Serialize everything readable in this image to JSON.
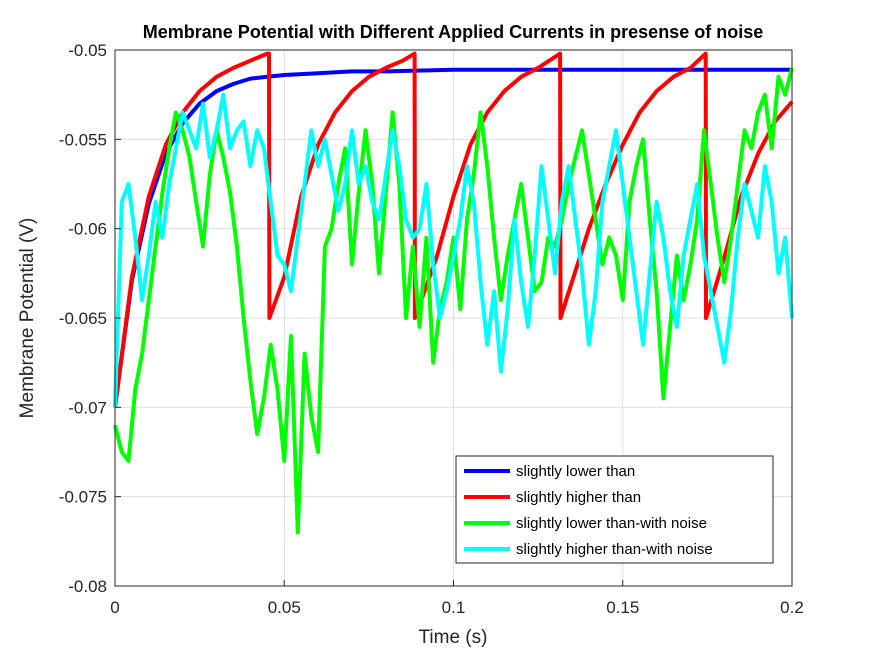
{
  "chart_data": {
    "type": "line",
    "title": "Membrane Potential with Different Applied Currents in presense of noise",
    "xlabel": "Time (s)",
    "ylabel": "Membrane Potential (V)",
    "xlim": [
      0,
      0.2
    ],
    "ylim": [
      -0.08,
      -0.05
    ],
    "xticks": [
      0,
      0.05,
      0.1,
      0.15,
      0.2
    ],
    "xtick_labels": [
      "0",
      "0.05",
      "0.1",
      "0.15",
      "0.2"
    ],
    "yticks": [
      -0.08,
      -0.075,
      -0.07,
      -0.065,
      -0.06,
      -0.055,
      -0.05
    ],
    "ytick_labels": [
      "-0.08",
      "-0.075",
      "-0.07",
      "-0.065",
      "-0.06",
      "-0.055",
      "-0.05"
    ],
    "grid": true,
    "legend_position": "bottom-right",
    "series": [
      {
        "name": "slightly lower than",
        "color": "#0000ff",
        "x": [
          0,
          0.005,
          0.01,
          0.015,
          0.02,
          0.025,
          0.03,
          0.035,
          0.04,
          0.045,
          0.05,
          0.06,
          0.07,
          0.08,
          0.1,
          0.12,
          0.14,
          0.16,
          0.18,
          0.2
        ],
        "y": [
          -0.07,
          -0.0629,
          -0.0586,
          -0.0558,
          -0.0541,
          -0.053,
          -0.0523,
          -0.0519,
          -0.0516,
          -0.0515,
          -0.0514,
          -0.0513,
          -0.0512,
          -0.0512,
          -0.0511,
          -0.0511,
          -0.0511,
          -0.0511,
          -0.0511,
          -0.0511
        ]
      },
      {
        "name": "slightly higher than",
        "color": "#ff0000",
        "x": [
          0,
          0.005,
          0.01,
          0.015,
          0.02,
          0.025,
          0.03,
          0.035,
          0.04,
          0.045,
          0.0455,
          0.0456,
          0.05,
          0.055,
          0.06,
          0.065,
          0.07,
          0.075,
          0.08,
          0.085,
          0.0885,
          0.0886,
          0.095,
          0.1,
          0.105,
          0.11,
          0.115,
          0.12,
          0.125,
          0.1315,
          0.1316,
          0.14,
          0.145,
          0.15,
          0.155,
          0.16,
          0.165,
          0.17,
          0.1745,
          0.1746,
          0.18,
          0.185,
          0.19,
          0.195,
          0.2
        ],
        "y": [
          -0.07,
          -0.0627,
          -0.0582,
          -0.0553,
          -0.0535,
          -0.0523,
          -0.0515,
          -0.051,
          -0.0506,
          -0.0502,
          -0.0502,
          -0.065,
          -0.0627,
          -0.0582,
          -0.0553,
          -0.0535,
          -0.0523,
          -0.0515,
          -0.051,
          -0.0506,
          -0.0502,
          -0.065,
          -0.0616,
          -0.0582,
          -0.0553,
          -0.0535,
          -0.0523,
          -0.0515,
          -0.051,
          -0.0502,
          -0.065,
          -0.06,
          -0.0575,
          -0.0553,
          -0.0535,
          -0.0523,
          -0.0515,
          -0.051,
          -0.0502,
          -0.065,
          -0.0616,
          -0.0582,
          -0.0558,
          -0.054,
          -0.0529
        ]
      },
      {
        "name": "slightly lower than-with noise",
        "color": "#00ff00",
        "x": [
          0,
          0.002,
          0.004,
          0.006,
          0.008,
          0.01,
          0.012,
          0.014,
          0.016,
          0.018,
          0.02,
          0.022,
          0.024,
          0.026,
          0.028,
          0.03,
          0.032,
          0.034,
          0.036,
          0.038,
          0.04,
          0.042,
          0.044,
          0.046,
          0.048,
          0.05,
          0.052,
          0.054,
          0.056,
          0.058,
          0.06,
          0.062,
          0.064,
          0.066,
          0.068,
          0.07,
          0.072,
          0.074,
          0.076,
          0.078,
          0.08,
          0.082,
          0.084,
          0.086,
          0.088,
          0.09,
          0.092,
          0.094,
          0.096,
          0.098,
          0.1,
          0.102,
          0.104,
          0.106,
          0.108,
          0.11,
          0.112,
          0.114,
          0.116,
          0.118,
          0.12,
          0.122,
          0.124,
          0.126,
          0.128,
          0.13,
          0.132,
          0.134,
          0.136,
          0.138,
          0.14,
          0.142,
          0.144,
          0.146,
          0.148,
          0.15,
          0.152,
          0.154,
          0.156,
          0.158,
          0.16,
          0.162,
          0.164,
          0.166,
          0.168,
          0.17,
          0.172,
          0.174,
          0.176,
          0.178,
          0.18,
          0.182,
          0.184,
          0.186,
          0.188,
          0.19,
          0.192,
          0.194,
          0.196,
          0.198,
          0.2
        ],
        "y": [
          -0.071,
          -0.0725,
          -0.073,
          -0.069,
          -0.067,
          -0.064,
          -0.061,
          -0.058,
          -0.0555,
          -0.0535,
          -0.0545,
          -0.056,
          -0.0585,
          -0.061,
          -0.057,
          -0.0545,
          -0.056,
          -0.058,
          -0.061,
          -0.065,
          -0.0685,
          -0.0715,
          -0.0695,
          -0.0665,
          -0.069,
          -0.073,
          -0.066,
          -0.077,
          -0.067,
          -0.0705,
          -0.0725,
          -0.061,
          -0.06,
          -0.0575,
          -0.0555,
          -0.062,
          -0.058,
          -0.0545,
          -0.0575,
          -0.0625,
          -0.058,
          -0.0535,
          -0.0575,
          -0.065,
          -0.061,
          -0.0655,
          -0.0605,
          -0.0675,
          -0.0645,
          -0.063,
          -0.0605,
          -0.0645,
          -0.0595,
          -0.057,
          -0.0535,
          -0.0565,
          -0.0605,
          -0.064,
          -0.0615,
          -0.0595,
          -0.0575,
          -0.0605,
          -0.0635,
          -0.063,
          -0.0605,
          -0.061,
          -0.0595,
          -0.0575,
          -0.056,
          -0.0545,
          -0.057,
          -0.0595,
          -0.062,
          -0.0605,
          -0.0615,
          -0.064,
          -0.0585,
          -0.0565,
          -0.055,
          -0.0595,
          -0.0635,
          -0.0695,
          -0.0655,
          -0.0615,
          -0.064,
          -0.062,
          -0.0595,
          -0.0545,
          -0.0575,
          -0.0605,
          -0.063,
          -0.0605,
          -0.0575,
          -0.0545,
          -0.0555,
          -0.0535,
          -0.0525,
          -0.0555,
          -0.0515,
          -0.0525,
          -0.051
        ]
      },
      {
        "name": "slightly higher than-with noise",
        "color": "#00ffff",
        "x": [
          0,
          0.002,
          0.004,
          0.006,
          0.008,
          0.01,
          0.012,
          0.014,
          0.016,
          0.018,
          0.02,
          0.022,
          0.024,
          0.026,
          0.028,
          0.03,
          0.032,
          0.034,
          0.036,
          0.038,
          0.04,
          0.042,
          0.044,
          0.046,
          0.048,
          0.05,
          0.052,
          0.054,
          0.056,
          0.058,
          0.06,
          0.062,
          0.064,
          0.066,
          0.068,
          0.07,
          0.072,
          0.074,
          0.076,
          0.078,
          0.08,
          0.082,
          0.084,
          0.086,
          0.088,
          0.09,
          0.092,
          0.094,
          0.096,
          0.098,
          0.1,
          0.102,
          0.104,
          0.106,
          0.108,
          0.11,
          0.112,
          0.114,
          0.116,
          0.118,
          0.12,
          0.122,
          0.124,
          0.126,
          0.128,
          0.13,
          0.132,
          0.134,
          0.136,
          0.138,
          0.14,
          0.142,
          0.144,
          0.146,
          0.148,
          0.15,
          0.152,
          0.154,
          0.156,
          0.158,
          0.16,
          0.162,
          0.164,
          0.166,
          0.168,
          0.17,
          0.172,
          0.174,
          0.176,
          0.178,
          0.18,
          0.182,
          0.184,
          0.186,
          0.188,
          0.19,
          0.192,
          0.194,
          0.196,
          0.198,
          0.2
        ],
        "y": [
          -0.07,
          -0.0585,
          -0.0575,
          -0.0605,
          -0.064,
          -0.0615,
          -0.0585,
          -0.0605,
          -0.0575,
          -0.0555,
          -0.0535,
          -0.0545,
          -0.0555,
          -0.053,
          -0.056,
          -0.0545,
          -0.0525,
          -0.0555,
          -0.0545,
          -0.054,
          -0.0565,
          -0.0545,
          -0.0555,
          -0.0585,
          -0.0615,
          -0.062,
          -0.0635,
          -0.0605,
          -0.0575,
          -0.0545,
          -0.0565,
          -0.055,
          -0.057,
          -0.059,
          -0.0575,
          -0.0545,
          -0.0575,
          -0.0565,
          -0.0585,
          -0.0595,
          -0.057,
          -0.0545,
          -0.0565,
          -0.0595,
          -0.0605,
          -0.06,
          -0.0575,
          -0.062,
          -0.065,
          -0.0635,
          -0.0615,
          -0.0595,
          -0.0565,
          -0.0585,
          -0.063,
          -0.0665,
          -0.0635,
          -0.068,
          -0.0645,
          -0.0595,
          -0.063,
          -0.0655,
          -0.0615,
          -0.0565,
          -0.0595,
          -0.0625,
          -0.0585,
          -0.0565,
          -0.0595,
          -0.0625,
          -0.0665,
          -0.0635,
          -0.0585,
          -0.0565,
          -0.0545,
          -0.0575,
          -0.0605,
          -0.0635,
          -0.0665,
          -0.0625,
          -0.0585,
          -0.0605,
          -0.0635,
          -0.0655,
          -0.0615,
          -0.0595,
          -0.0575,
          -0.0615,
          -0.0635,
          -0.0655,
          -0.0675,
          -0.0645,
          -0.0605,
          -0.0575,
          -0.059,
          -0.0605,
          -0.0565,
          -0.0585,
          -0.0625,
          -0.0605,
          -0.065
        ]
      }
    ]
  }
}
